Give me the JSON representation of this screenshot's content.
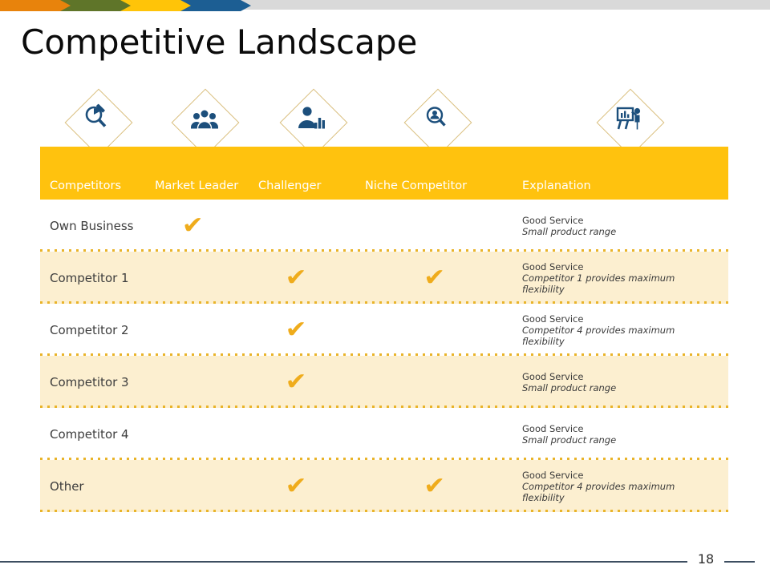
{
  "slide": {
    "title": "Competitive Landscape",
    "page_number": "18"
  },
  "top_bar": {
    "chevron_colors": [
      "#E8830C",
      "#5F7529",
      "#FFC408",
      "#1C5E93"
    ],
    "tail_color": "#D9D9D9"
  },
  "icons_row": [
    {
      "name": "pie-chart-magnifier-icon"
    },
    {
      "name": "team-icon"
    },
    {
      "name": "person-bar-chart-icon"
    },
    {
      "name": "person-search-icon"
    },
    {
      "name": "presentation-board-icon"
    }
  ],
  "theme": {
    "header_bg": "#FFC20E",
    "shaded_row_bg": "#FCEFD0",
    "check_color": "#EFAC1C",
    "dotted_separator_color": "#E9B42A",
    "icon_color": "#1C4F7C",
    "diamond_border_color": "#D9BE7C"
  },
  "table": {
    "check_glyph": "✔",
    "columns": [
      "Competitors",
      "Market Leader",
      "Challenger",
      "Niche Competitor",
      "Explanation"
    ],
    "rows": [
      {
        "label": "Own Business",
        "shaded": false,
        "checks": {
          "market_leader": true,
          "challenger": false,
          "niche_competitor": false
        },
        "explanation": {
          "line1": "Good Service",
          "line2": "Small product range"
        }
      },
      {
        "label": "Competitor 1",
        "shaded": true,
        "checks": {
          "market_leader": false,
          "challenger": true,
          "niche_competitor": true
        },
        "explanation": {
          "line1": "Good Service",
          "line2": "Competitor 1 provides maximum flexibility"
        }
      },
      {
        "label": "Competitor 2",
        "shaded": false,
        "checks": {
          "market_leader": false,
          "challenger": true,
          "niche_competitor": false
        },
        "explanation": {
          "line1": "Good Service",
          "line2": "Competitor 4 provides maximum flexibility"
        }
      },
      {
        "label": "Competitor 3",
        "shaded": true,
        "checks": {
          "market_leader": false,
          "challenger": true,
          "niche_competitor": false
        },
        "explanation": {
          "line1": "Good Service",
          "line2": "Small product range"
        }
      },
      {
        "label": "Competitor 4",
        "shaded": false,
        "checks": {
          "market_leader": false,
          "challenger": false,
          "niche_competitor": false
        },
        "explanation": {
          "line1": "Good Service",
          "line2": "Small product range"
        }
      },
      {
        "label": "Other",
        "shaded": true,
        "checks": {
          "market_leader": false,
          "challenger": true,
          "niche_competitor": true
        },
        "explanation": {
          "line1": "Good Service",
          "line2": "Competitor 4 provides maximum flexibility"
        }
      }
    ]
  }
}
